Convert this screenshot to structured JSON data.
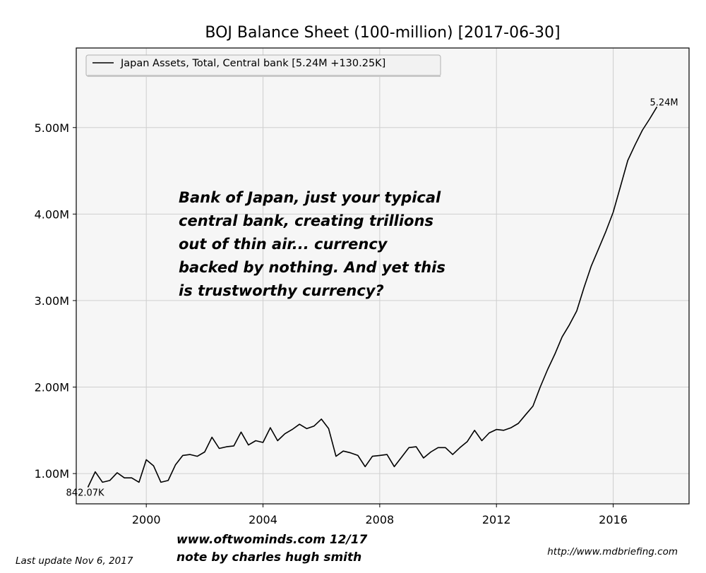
{
  "chart_data": {
    "type": "line",
    "title": "BOJ Balance Sheet (100-million) [2017-06-30]",
    "xlabel": "",
    "ylabel": "",
    "xlim": [
      1997.6,
      2018.6
    ],
    "ylim": [
      0.65,
      5.92
    ],
    "x_ticks": [
      2000,
      2004,
      2008,
      2012,
      2016
    ],
    "x_tick_labels": [
      "2000",
      "2004",
      "2008",
      "2012",
      "2016"
    ],
    "y_ticks": [
      1.0,
      2.0,
      3.0,
      4.0,
      5.0
    ],
    "y_tick_labels": [
      "1.00M",
      "2.00M",
      "3.00M",
      "4.00M",
      "5.00M"
    ],
    "grid": true,
    "legend_position": "top-left",
    "series": [
      {
        "name": "Japan Assets, Total, Central bank [5.24M +130.25K]",
        "color": "#000000",
        "x": [
          1998.0,
          1998.25,
          1998.5,
          1998.75,
          1999.0,
          1999.25,
          1999.5,
          1999.75,
          2000.0,
          2000.25,
          2000.5,
          2000.75,
          2001.0,
          2001.25,
          2001.5,
          2001.75,
          2002.0,
          2002.25,
          2002.5,
          2002.75,
          2003.0,
          2003.25,
          2003.5,
          2003.75,
          2004.0,
          2004.25,
          2004.5,
          2004.75,
          2005.0,
          2005.25,
          2005.5,
          2005.75,
          2006.0,
          2006.25,
          2006.5,
          2006.75,
          2007.0,
          2007.25,
          2007.5,
          2007.75,
          2008.0,
          2008.25,
          2008.5,
          2008.75,
          2009.0,
          2009.25,
          2009.5,
          2009.75,
          2010.0,
          2010.25,
          2010.5,
          2010.75,
          2011.0,
          2011.25,
          2011.5,
          2011.75,
          2012.0,
          2012.25,
          2012.5,
          2012.75,
          2013.0,
          2013.25,
          2013.5,
          2013.75,
          2014.0,
          2014.25,
          2014.5,
          2014.75,
          2015.0,
          2015.25,
          2015.5,
          2015.75,
          2016.0,
          2016.25,
          2016.5,
          2016.75,
          2017.0,
          2017.25,
          2017.5
        ],
        "values": [
          0.842,
          1.02,
          0.9,
          0.92,
          1.01,
          0.95,
          0.95,
          0.9,
          1.16,
          1.09,
          0.9,
          0.92,
          1.1,
          1.21,
          1.22,
          1.2,
          1.25,
          1.42,
          1.29,
          1.31,
          1.32,
          1.48,
          1.33,
          1.38,
          1.36,
          1.53,
          1.38,
          1.46,
          1.51,
          1.57,
          1.52,
          1.55,
          1.63,
          1.52,
          1.2,
          1.26,
          1.24,
          1.21,
          1.08,
          1.2,
          1.21,
          1.22,
          1.08,
          1.19,
          1.3,
          1.31,
          1.18,
          1.25,
          1.3,
          1.3,
          1.22,
          1.3,
          1.37,
          1.5,
          1.38,
          1.47,
          1.51,
          1.5,
          1.53,
          1.58,
          1.68,
          1.78,
          2.0,
          2.2,
          2.38,
          2.58,
          2.72,
          2.88,
          3.15,
          3.4,
          3.6,
          3.8,
          4.02,
          4.32,
          4.62,
          4.8,
          4.97,
          5.1,
          5.24
        ]
      }
    ],
    "point_labels": [
      {
        "text": "842.07K",
        "x": 1998.0,
        "y": 0.842
      },
      {
        "text": "5.24M",
        "x": 2017.5,
        "y": 5.24
      }
    ],
    "annotation": [
      "Bank of Japan, just your typical",
      "central bank, creating trillions",
      "out of thin air... currency",
      "backed by nothing. And yet this",
      "is trustworthy currency?"
    ],
    "credit": [
      "www.oftwominds.com  12/17",
      "note by charles hugh smith"
    ],
    "footer_left": "Last update Nov  6, 2017",
    "footer_right": "http://www.mdbriefing.com"
  }
}
